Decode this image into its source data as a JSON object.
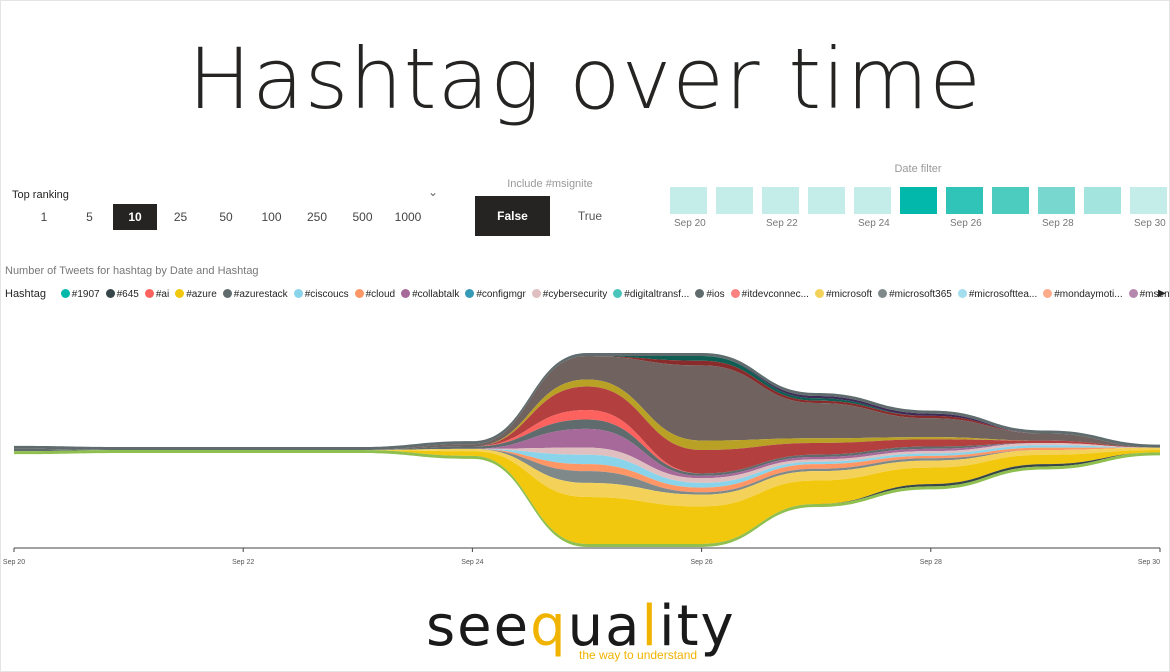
{
  "page": {
    "title": "Hashtag over time"
  },
  "ranking": {
    "label": "Top ranking",
    "options": [
      "1",
      "5",
      "10",
      "25",
      "50",
      "100",
      "250",
      "500",
      "1000"
    ],
    "selected": "10"
  },
  "include": {
    "label": "Include #msignite",
    "false_label": "False",
    "true_label": "True",
    "selected": "False"
  },
  "date_filter": {
    "label": "Date filter",
    "tick_labels": [
      "Sep 20",
      "Sep 22",
      "Sep 24",
      "Sep 26",
      "Sep 28",
      "Sep 30"
    ],
    "cell_colors": [
      "#c4ece9",
      "#c4ece9",
      "#c4ece9",
      "#c4ece9",
      "#c4ece9",
      "#01b8aa",
      "#30c3b7",
      "#4ccbbf",
      "#78d8cf",
      "#a4e4df",
      "#c4ece9"
    ]
  },
  "chart_data": {
    "type": "area",
    "title": "Number of Tweets for hashtag by Date and Hashtag",
    "legend_title": "Hashtag",
    "legend_placement": "top",
    "x": [
      "Sep 20",
      "Sep 21",
      "Sep 22",
      "Sep 23",
      "Sep 24",
      "Sep 25",
      "Sep 26",
      "Sep 27",
      "Sep 28",
      "Sep 29",
      "Sep 30"
    ],
    "x_tick_labels": [
      "Sep 20",
      "Sep 22",
      "Sep 24",
      "Sep 26",
      "Sep 28",
      "Sep 30"
    ],
    "series": [
      {
        "name": "#1907",
        "color": "#01b8aa",
        "values": [
          0,
          0,
          0,
          0,
          0,
          0,
          0,
          0,
          0,
          0,
          0
        ]
      },
      {
        "name": "#645",
        "color": "#374649",
        "values": [
          0,
          0,
          0,
          0,
          0,
          0,
          0,
          0,
          1,
          1,
          0
        ]
      },
      {
        "name": "#ai",
        "color": "#fd625e",
        "values": [
          0,
          0,
          0,
          0,
          0,
          4,
          0,
          0,
          0,
          0,
          0
        ]
      },
      {
        "name": "#azure",
        "color": "#f2c80f",
        "values": [
          0,
          0,
          0,
          0,
          2,
          20,
          16,
          10,
          7,
          4,
          1
        ]
      },
      {
        "name": "#azurestack",
        "color": "#5f6b6d",
        "values": [
          1,
          0,
          0,
          0,
          1,
          4,
          1,
          1,
          1,
          0,
          0
        ]
      },
      {
        "name": "#ciscoucs",
        "color": "#8ad4eb",
        "values": [
          0,
          0,
          0,
          0,
          0,
          4,
          2,
          1,
          1,
          1,
          0
        ]
      },
      {
        "name": "#cloud",
        "color": "#fe9666",
        "values": [
          0,
          0,
          0,
          0,
          0,
          3,
          2,
          2,
          1,
          1,
          0
        ]
      },
      {
        "name": "#collabtalk",
        "color": "#a66999",
        "values": [
          0,
          0,
          0,
          0,
          0,
          8,
          1,
          1,
          1,
          0,
          0
        ]
      },
      {
        "name": "#configmgr",
        "color": "#3599b8",
        "values": [
          0,
          0,
          0,
          0,
          0,
          0,
          0,
          0,
          0,
          0,
          0
        ]
      },
      {
        "name": "#cybersecurity",
        "color": "#dfbfbf",
        "values": [
          0,
          0,
          0,
          0,
          0,
          3,
          2,
          1,
          1,
          1,
          0
        ]
      },
      {
        "name": "#digitaltransf...",
        "color": "#4ac5bb",
        "values": [
          0,
          0,
          0,
          0,
          0,
          0,
          0,
          0,
          0,
          0,
          0
        ]
      },
      {
        "name": "#ios",
        "color": "#5f6b6d",
        "values": [
          0,
          0,
          0,
          0,
          0,
          0,
          0,
          0,
          0,
          0,
          0
        ]
      },
      {
        "name": "#itdevconnec...",
        "color": "#fb8281",
        "values": [
          0,
          0,
          0,
          0,
          0,
          0,
          0,
          0,
          0,
          0,
          0
        ]
      },
      {
        "name": "#microsoft",
        "color": "#f4d25a",
        "values": [
          0,
          0,
          0,
          0,
          1,
          6,
          5,
          4,
          3,
          2,
          1
        ]
      },
      {
        "name": "#microsoft365",
        "color": "#7f898a",
        "values": [
          0,
          0,
          0,
          0,
          0,
          5,
          1,
          1,
          1,
          0,
          0
        ]
      },
      {
        "name": "#microsofttea...",
        "color": "#a4ddee",
        "values": [
          0,
          0,
          0,
          0,
          0,
          0,
          0,
          0,
          0,
          0,
          0
        ]
      },
      {
        "name": "#mondaymoti...",
        "color": "#fdab89",
        "values": [
          0,
          0,
          0,
          0,
          0,
          0,
          0,
          0,
          0,
          0,
          0
        ]
      },
      {
        "name": "#msenvision",
        "color": "#b687ac",
        "values": [
          0,
          0,
          0,
          0,
          0,
          0,
          0,
          0,
          0,
          0,
          0
        ]
      },
      {
        "values": [
          0,
          0,
          0,
          0,
          0,
          10,
          10,
          5,
          3,
          1,
          0
        ],
        "color": "#b33f3f"
      },
      {
        "values": [
          0,
          0,
          0,
          0,
          0,
          3,
          4,
          2,
          1,
          0,
          0
        ],
        "color": "#b8a125"
      },
      {
        "values": [
          0,
          0,
          0,
          0,
          1,
          10,
          32,
          15,
          8,
          3,
          0
        ],
        "color": "#6f625f"
      },
      {
        "values": [
          0,
          0,
          0,
          0,
          0,
          0,
          2,
          1,
          1,
          0,
          0
        ],
        "color": "#8a2b2b"
      },
      {
        "values": [
          0,
          0,
          0,
          0,
          0,
          0,
          2,
          1,
          0,
          0,
          0
        ],
        "color": "#0e5e53"
      },
      {
        "values": [
          0,
          0,
          0,
          0,
          0,
          0,
          0,
          1,
          1,
          0,
          0
        ],
        "color": "#3e2a55"
      }
    ]
  },
  "logo": {
    "part1": "see",
    "accent1": "q",
    "part2": "ua",
    "accent2": "l",
    "part3": "ity",
    "tagline": "the way to understand"
  }
}
